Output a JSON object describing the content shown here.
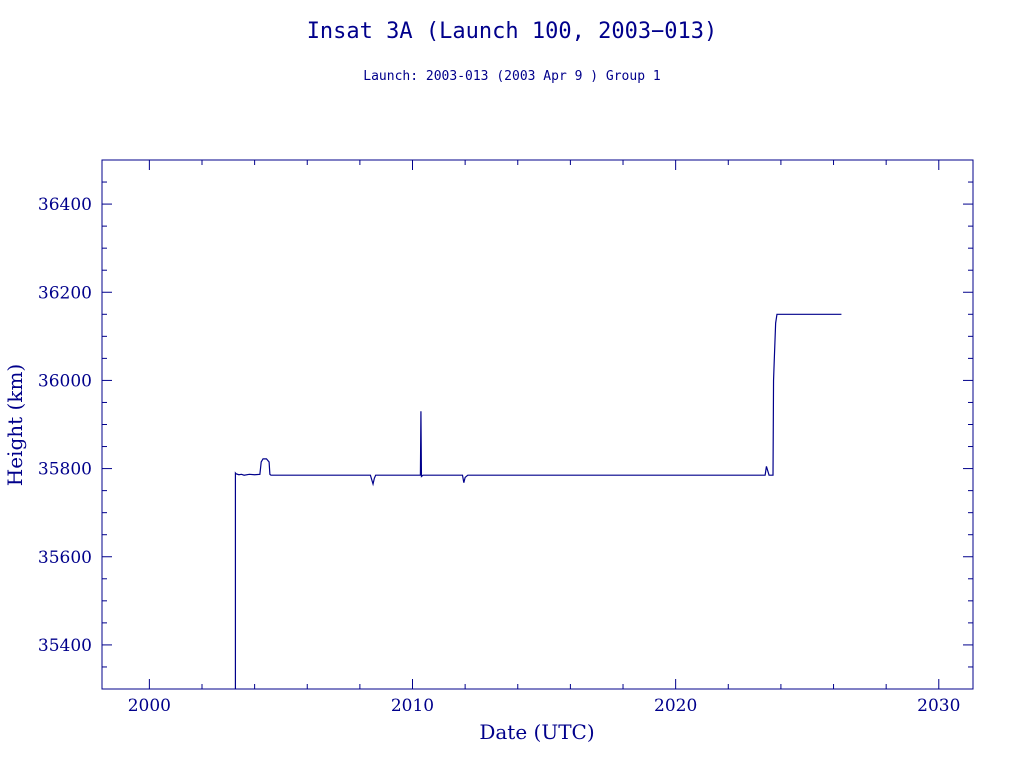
{
  "chart_data": {
    "type": "line",
    "title": "Insat 3A (Launch 100, 2003−013)",
    "subtitle": "Launch: 2003-013  (2003 Apr  9 )  Group 1",
    "xlabel": "Date (UTC)",
    "ylabel": "Height (km)",
    "xlim": [
      1998.2,
      2031.3
    ],
    "ylim": [
      35300,
      36500
    ],
    "x_ticks": [
      2000,
      2010,
      2020,
      2030
    ],
    "x_tick_labels": [
      "2000",
      "2010",
      "2020",
      "2030"
    ],
    "y_ticks": [
      35400,
      35600,
      35800,
      36000,
      36200,
      36400
    ],
    "y_tick_labels": [
      "35400",
      "35600",
      "36000",
      "36200",
      "36400"
    ],
    "y_tick_label_values": [
      35400,
      35600,
      36000,
      36200,
      36400
    ],
    "y_tick_label_list": [
      "35400",
      "35600",
      "35800",
      "36000",
      "36200",
      "36400"
    ],
    "colors": {
      "axes": "#00008b",
      "series": "#00008b"
    },
    "series": [
      {
        "x": [
          2003.27,
          2003.27,
          2003.3,
          2003.4,
          2003.5,
          2003.6,
          2003.8,
          2004.0,
          2004.2,
          2004.25,
          2004.32,
          2004.45,
          2004.55,
          2004.58,
          2004.62,
          2005.5,
          2006.5,
          2007.5,
          2008.4,
          2008.5,
          2008.55,
          2008.6,
          2009.0,
          2010.0,
          2010.3,
          2010.32,
          2010.34,
          2010.4,
          2011.0,
          2011.9,
          2011.95,
          2012.0,
          2012.1,
          2013.0,
          2014.0,
          2015.0,
          2016.0,
          2017.0,
          2018.0,
          2019.0,
          2020.0,
          2021.0,
          2022.0,
          2023.0,
          2023.4,
          2023.45,
          2023.5,
          2023.55,
          2023.7,
          2023.72,
          2023.75,
          2023.8,
          2023.85,
          2024.0,
          2024.5,
          2025.0,
          2025.5,
          2026.0,
          2026.3
        ],
        "y": [
          35300,
          35790,
          35788,
          35786,
          35787,
          35785,
          35787,
          35786,
          35787,
          35815,
          35822,
          35822,
          35815,
          35787,
          35785,
          35785,
          35785,
          35785,
          35785,
          35765,
          35778,
          35785,
          35785,
          35785,
          35785,
          35930,
          35782,
          35785,
          35785,
          35785,
          35768,
          35780,
          35785,
          35785,
          35785,
          35785,
          35785,
          35785,
          35785,
          35785,
          35785,
          35785,
          35785,
          35785,
          35785,
          35805,
          35795,
          35785,
          35785,
          36000,
          36050,
          36130,
          36150,
          36150,
          36150,
          36150,
          36150,
          36150,
          36150
        ]
      }
    ]
  }
}
